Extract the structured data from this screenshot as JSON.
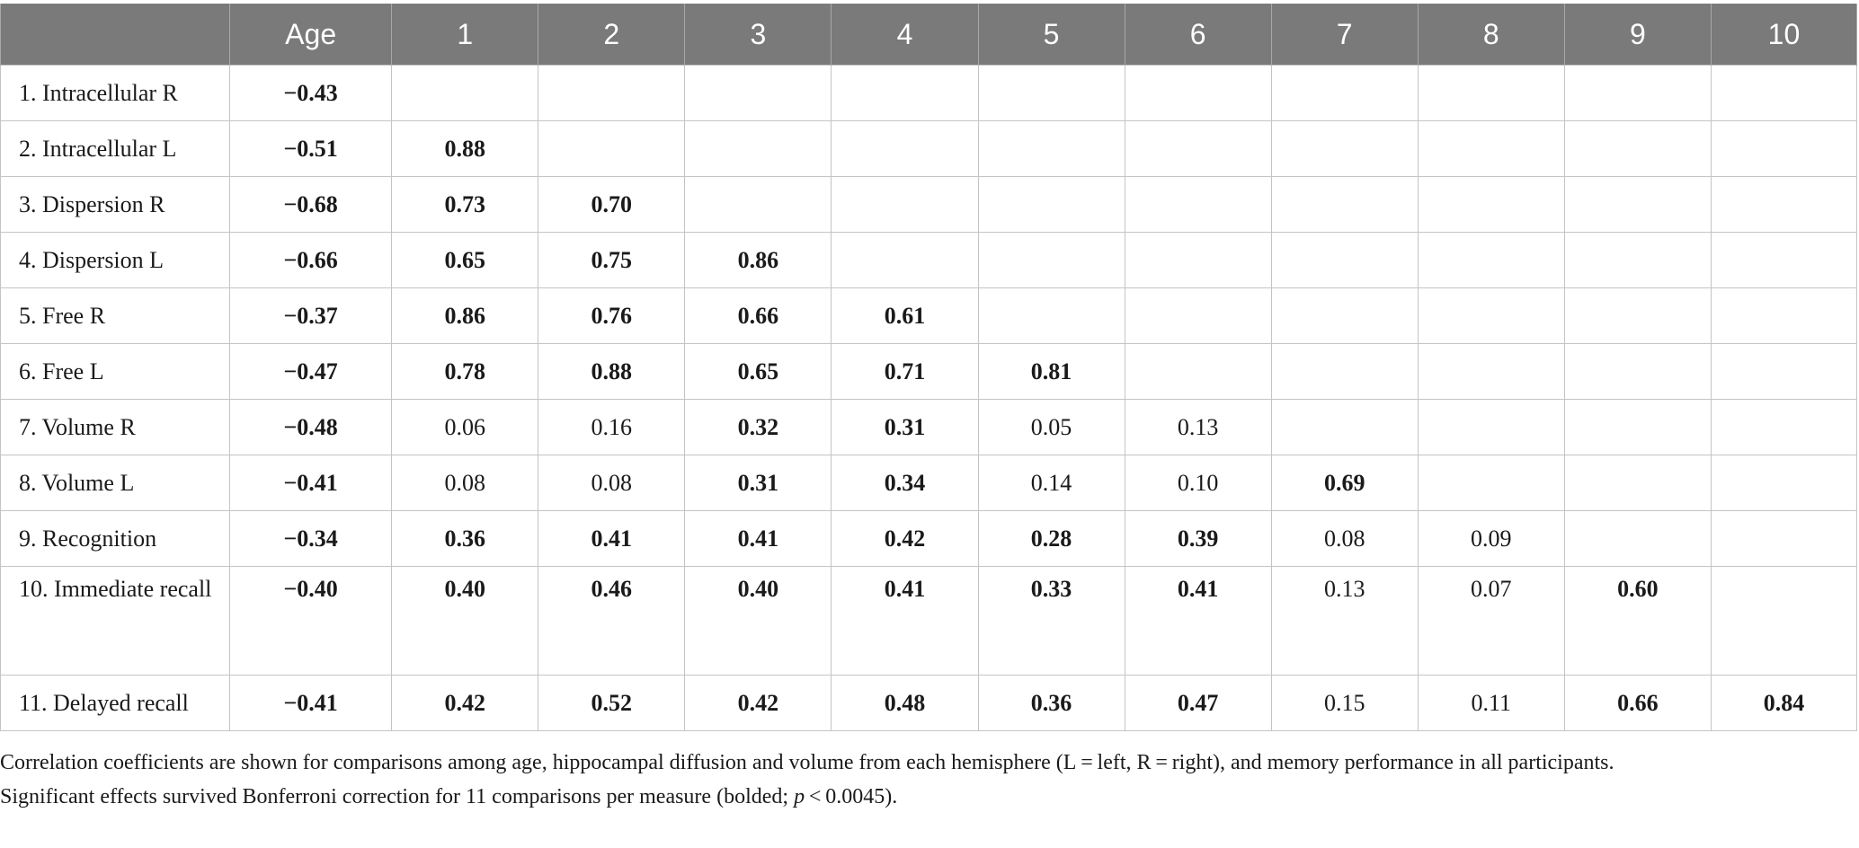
{
  "table": {
    "columns": [
      "",
      "Age",
      "1",
      "2",
      "3",
      "4",
      "5",
      "6",
      "7",
      "8",
      "9",
      "10"
    ],
    "rows": [
      {
        "label": "1. Intracellular R",
        "cells": [
          {
            "v": "−0.43",
            "b": true
          }
        ]
      },
      {
        "label": "2. Intracellular L",
        "cells": [
          {
            "v": "−0.51",
            "b": true
          },
          {
            "v": "0.88",
            "b": true
          }
        ]
      },
      {
        "label": "3. Dispersion R",
        "cells": [
          {
            "v": "−0.68",
            "b": true
          },
          {
            "v": "0.73",
            "b": true
          },
          {
            "v": "0.70",
            "b": true
          }
        ]
      },
      {
        "label": "4. Dispersion L",
        "cells": [
          {
            "v": "−0.66",
            "b": true
          },
          {
            "v": "0.65",
            "b": true
          },
          {
            "v": "0.75",
            "b": true
          },
          {
            "v": "0.86",
            "b": true
          }
        ]
      },
      {
        "label": "5. Free R",
        "cells": [
          {
            "v": "−0.37",
            "b": true
          },
          {
            "v": "0.86",
            "b": true
          },
          {
            "v": "0.76",
            "b": true
          },
          {
            "v": "0.66",
            "b": true
          },
          {
            "v": "0.61",
            "b": true
          }
        ]
      },
      {
        "label": "6. Free L",
        "cells": [
          {
            "v": "−0.47",
            "b": true
          },
          {
            "v": "0.78",
            "b": true
          },
          {
            "v": "0.88",
            "b": true
          },
          {
            "v": "0.65",
            "b": true
          },
          {
            "v": "0.71",
            "b": true
          },
          {
            "v": "0.81",
            "b": true
          }
        ]
      },
      {
        "label": "7. Volume R",
        "cells": [
          {
            "v": "−0.48",
            "b": true
          },
          {
            "v": "0.06",
            "b": false
          },
          {
            "v": "0.16",
            "b": false
          },
          {
            "v": "0.32",
            "b": true
          },
          {
            "v": "0.31",
            "b": true
          },
          {
            "v": "0.05",
            "b": false
          },
          {
            "v": "0.13",
            "b": false
          }
        ]
      },
      {
        "label": "8. Volume L",
        "cells": [
          {
            "v": "−0.41",
            "b": true
          },
          {
            "v": "0.08",
            "b": false
          },
          {
            "v": "0.08",
            "b": false
          },
          {
            "v": "0.31",
            "b": true
          },
          {
            "v": "0.34",
            "b": true
          },
          {
            "v": "0.14",
            "b": false
          },
          {
            "v": "0.10",
            "b": false
          },
          {
            "v": "0.69",
            "b": true
          }
        ]
      },
      {
        "label": "9. Recognition",
        "cells": [
          {
            "v": "−0.34",
            "b": true
          },
          {
            "v": "0.36",
            "b": true
          },
          {
            "v": "0.41",
            "b": true
          },
          {
            "v": "0.41",
            "b": true
          },
          {
            "v": "0.42",
            "b": true
          },
          {
            "v": "0.28",
            "b": true
          },
          {
            "v": "0.39",
            "b": true
          },
          {
            "v": "0.08",
            "b": false
          },
          {
            "v": "0.09",
            "b": false
          }
        ]
      },
      {
        "label": "10. Immediate recall",
        "cells": [
          {
            "v": "−0.40",
            "b": true
          },
          {
            "v": "0.40",
            "b": true
          },
          {
            "v": "0.46",
            "b": true
          },
          {
            "v": "0.40",
            "b": true
          },
          {
            "v": "0.41",
            "b": true
          },
          {
            "v": "0.33",
            "b": true
          },
          {
            "v": "0.41",
            "b": true
          },
          {
            "v": "0.13",
            "b": false
          },
          {
            "v": "0.07",
            "b": false
          },
          {
            "v": "0.60",
            "b": true
          }
        ]
      },
      {
        "label": "11. Delayed recall",
        "cells": [
          {
            "v": "−0.41",
            "b": true
          },
          {
            "v": "0.42",
            "b": true
          },
          {
            "v": "0.52",
            "b": true
          },
          {
            "v": "0.42",
            "b": true
          },
          {
            "v": "0.48",
            "b": true
          },
          {
            "v": "0.36",
            "b": true
          },
          {
            "v": "0.47",
            "b": true
          },
          {
            "v": "0.15",
            "b": false
          },
          {
            "v": "0.11",
            "b": false
          },
          {
            "v": "0.66",
            "b": true
          },
          {
            "v": "0.84",
            "b": true
          }
        ]
      }
    ]
  },
  "footnote": {
    "line1": "Correlation coefficients are shown for comparisons among age, hippocampal diffusion and volume from each hemisphere (L = left, R = right), and memory performance in all participants.",
    "line2_before": "Significant effects survived Bonferroni correction for 11 comparisons per measure (bolded; ",
    "line2_p": "p",
    "line2_after": " < 0.0045)."
  },
  "colors": {
    "header_bg": "#7a7a7a",
    "header_text": "#ffffff",
    "grid": "#c4c4c4",
    "text": "#1a1a1a"
  }
}
